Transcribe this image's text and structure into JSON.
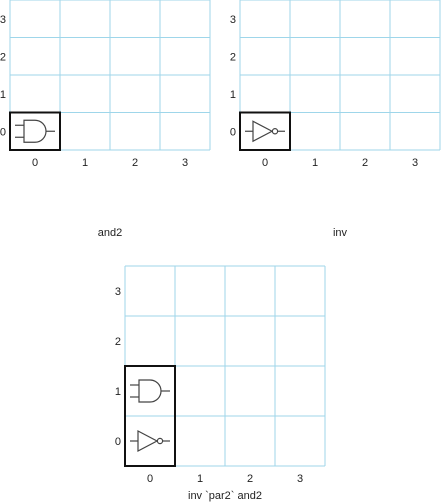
{
  "colors": {
    "grid": "#9fd6ea",
    "frame": "#111111",
    "gate": "#444444",
    "text": "#222222"
  },
  "panels": [
    {
      "id": "and2",
      "caption": "and2",
      "x_ticks": [
        "0",
        "1",
        "2",
        "3"
      ],
      "y_ticks": [
        "3",
        "2",
        "1",
        "0"
      ],
      "gates": [
        {
          "type": "and2-icon",
          "row": 0
        }
      ],
      "frame_rows": 1
    },
    {
      "id": "inv",
      "caption": "inv",
      "x_ticks": [
        "0",
        "1",
        "2",
        "3"
      ],
      "y_ticks": [
        "3",
        "2",
        "1",
        "0"
      ],
      "gates": [
        {
          "type": "inverter-icon",
          "row": 0
        }
      ],
      "frame_rows": 1
    },
    {
      "id": "inv-par2-and2",
      "caption": "inv `par2` and2",
      "x_ticks": [
        "0",
        "1",
        "2",
        "3"
      ],
      "y_ticks": [
        "3",
        "2",
        "1",
        "0"
      ],
      "gates": [
        {
          "type": "and2-icon",
          "row": 1
        },
        {
          "type": "inverter-icon",
          "row": 0
        }
      ],
      "frame_rows": 2
    }
  ]
}
